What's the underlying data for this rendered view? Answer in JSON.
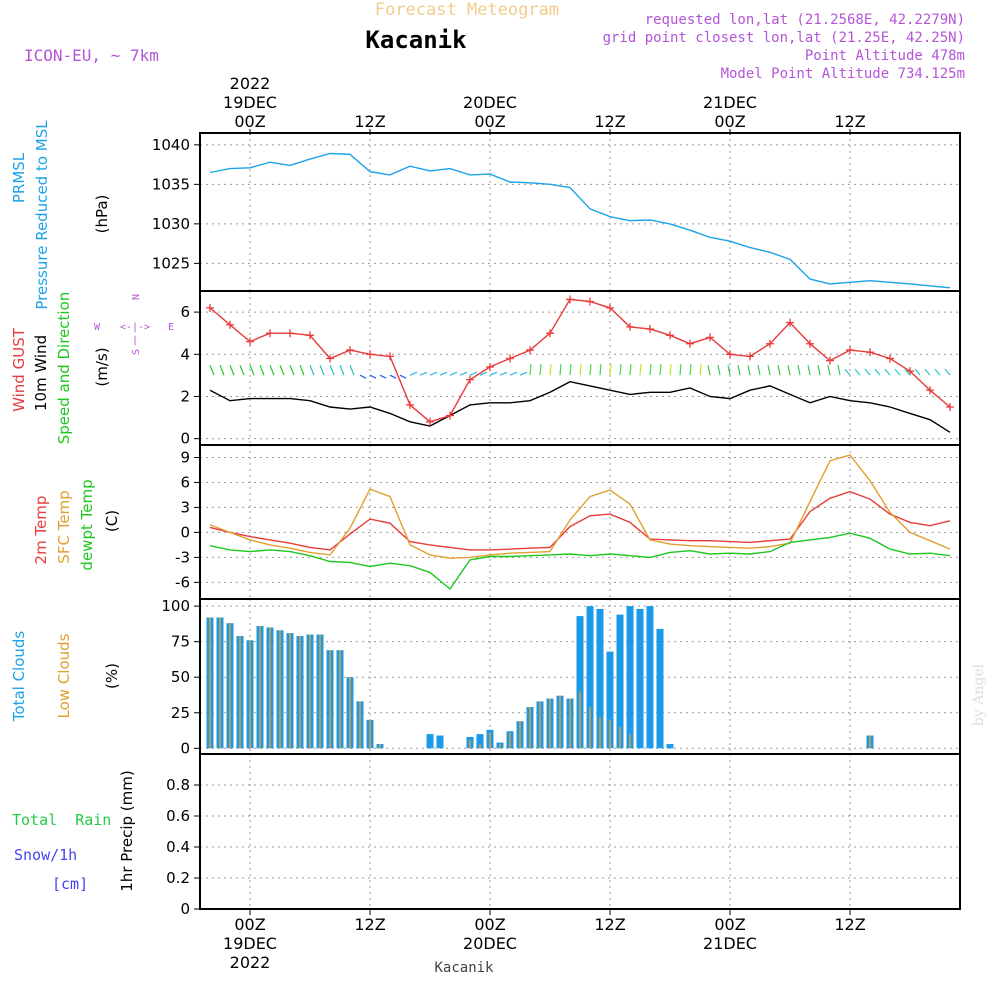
{
  "header": {
    "super_title": "Forecast Meteogram",
    "location": "Kacanik",
    "model": "ICON-EU, ~ 7km",
    "requested": "requested lon,lat (21.2568E, 42.2279N)",
    "grid_point": "grid point closest lon,lat (21.25E, 42.25N)",
    "point_alt": "Point Altitude 478m",
    "model_alt": "Model Point Altitude 734.125m"
  },
  "time_axis": {
    "top_labels": [
      {
        "t": 0,
        "lines": [
          "2022",
          "19DEC",
          "00Z"
        ]
      },
      {
        "t": 12,
        "lines": [
          "12Z"
        ]
      },
      {
        "t": 24,
        "lines": [
          "20DEC",
          "00Z"
        ]
      },
      {
        "t": 36,
        "lines": [
          "12Z"
        ]
      },
      {
        "t": 48,
        "lines": [
          "21DEC",
          "00Z"
        ]
      },
      {
        "t": 60,
        "lines": [
          "12Z"
        ]
      }
    ],
    "bottom_labels": [
      {
        "t": 0,
        "lines": [
          "00Z",
          "19DEC",
          "2022"
        ]
      },
      {
        "t": 12,
        "lines": [
          "12Z"
        ]
      },
      {
        "t": 24,
        "lines": [
          "00Z",
          "20DEC"
        ]
      },
      {
        "t": 36,
        "lines": [
          "12Z"
        ]
      },
      {
        "t": 48,
        "lines": [
          "00Z",
          "21DEC"
        ]
      },
      {
        "t": 60,
        "lines": [
          "12Z"
        ]
      }
    ],
    "xlim": [
      -5,
      71
    ],
    "footer_label": "Kacanik"
  },
  "watermark": "by Angel",
  "panel_labels": {
    "pressure": [
      "PRMSL",
      "Pressure Reduced to MSL"
    ],
    "pressure_unit": "(hPa)",
    "wind_gust": "Wind GUST",
    "wind_10m": "10m Wind",
    "wind_dir": "Speed and Direction",
    "wind_unit": "(m/s)",
    "compass": {
      "n": "N",
      "s": "S",
      "w": "W",
      "e": "E",
      "ns": "|",
      "we": "<-|->"
    },
    "t2m": "2m Temp",
    "tsfc": "SFC Temp",
    "tdew": "dewpt Temp",
    "temp_unit": "(C)",
    "total_clouds": "Total Clouds",
    "low_clouds": "Low Clouds",
    "cloud_unit": "(%)",
    "total_rain": "Total  Rain",
    "snow": "Snow/1h",
    "snow_unit": "[cm]",
    "precip": "1hr Precip (mm)"
  },
  "colors": {
    "pressure": "#1aa3e8",
    "gust": "#e83b3b",
    "wind10": "#000000",
    "t2m": "#e83b3b",
    "tsfc": "#e0a030",
    "tdew": "#1ec81e",
    "total_clouds": "#1a9ae8",
    "low_clouds": "#e0a030",
    "label_purple": "#b455d8",
    "title_orange": "#f2cc8c",
    "rain_green": "#22cc44",
    "snow_blue": "#4444ee"
  },
  "chart_data": [
    {
      "type": "line",
      "title": "PRMSL Pressure Reduced to MSL",
      "ylabel": "(hPa)",
      "ylim": [
        1021.5,
        1041.5
      ],
      "yticks": [
        "1025",
        "1030",
        "1035",
        "1040"
      ],
      "yticks_values": [
        1025,
        1030,
        1035,
        1040
      ],
      "series": [
        {
          "name": "PRMSL",
          "x": [
            -4,
            -2,
            0,
            2,
            4,
            6,
            8,
            10,
            12,
            14,
            16,
            18,
            20,
            22,
            24,
            26,
            28,
            30,
            32,
            34,
            36,
            38,
            40,
            42,
            44,
            46,
            48,
            50,
            52,
            54,
            56,
            58,
            60,
            62,
            64,
            66,
            70
          ],
          "y": [
            1036.5,
            1037,
            1037.1,
            1037.8,
            1037.4,
            1038.2,
            1038.9,
            1038.8,
            1036.6,
            1036.2,
            1037.3,
            1036.7,
            1037,
            1036.2,
            1036.3,
            1035.3,
            1035.2,
            1035,
            1034.6,
            1031.9,
            1030.9,
            1030.4,
            1030.5,
            1030,
            1029.2,
            1028.3,
            1027.8,
            1027,
            1026.4,
            1025.5,
            1023,
            1022.4,
            1022.6,
            1022.8,
            1022.6,
            1022.4,
            1021.9
          ]
        }
      ],
      "grid": true
    },
    {
      "type": "line",
      "title": "Wind GUST / 10m Wind Speed and Direction",
      "ylabel": "(m/s)",
      "ylim": [
        -0.3,
        7
      ],
      "yticks": [
        "0",
        "2",
        "4",
        "6"
      ],
      "yticks_values": [
        0,
        2,
        4,
        6
      ],
      "series": [
        {
          "name": "Wind GUST",
          "x": [
            -4,
            -2,
            0,
            2,
            4,
            6,
            8,
            10,
            12,
            14,
            16,
            18,
            20,
            22,
            24,
            26,
            28,
            30,
            32,
            34,
            36,
            38,
            40,
            42,
            44,
            46,
            48,
            50,
            52,
            54,
            56,
            58,
            60,
            62,
            64,
            66,
            68,
            70
          ],
          "y": [
            6.2,
            5.4,
            4.6,
            5,
            5,
            4.9,
            3.8,
            4.2,
            4,
            3.9,
            1.6,
            0.8,
            1.1,
            2.8,
            3.4,
            3.8,
            4.2,
            5,
            6.6,
            6.5,
            6.2,
            5.3,
            5.2,
            4.9,
            4.5,
            4.8,
            4,
            3.9,
            4.5,
            5.5,
            4.5,
            3.7,
            4.2,
            4.1,
            3.8,
            3.2,
            2.3,
            1.5
          ]
        },
        {
          "name": "10m Wind",
          "x": [
            -4,
            -2,
            0,
            2,
            4,
            6,
            8,
            10,
            12,
            14,
            16,
            18,
            20,
            22,
            24,
            26,
            28,
            30,
            32,
            34,
            36,
            38,
            40,
            42,
            44,
            46,
            48,
            50,
            52,
            54,
            56,
            58,
            60,
            62,
            64,
            66,
            68,
            70
          ],
          "y": [
            2.3,
            1.8,
            1.9,
            1.9,
            1.9,
            1.8,
            1.5,
            1.4,
            1.5,
            1.2,
            0.8,
            0.6,
            1.1,
            1.6,
            1.7,
            1.7,
            1.8,
            2.2,
            2.7,
            2.5,
            2.3,
            2.1,
            2.2,
            2.2,
            2.4,
            2,
            1.9,
            2.3,
            2.5,
            2.1,
            1.7,
            2,
            1.8,
            1.7,
            1.5,
            1.2,
            0.9,
            0.3
          ]
        }
      ],
      "arrow_level": 3.2,
      "grid": true
    },
    {
      "type": "line",
      "title": "2m Temp / SFC Temp / dewpt Temp",
      "ylabel": "(C)",
      "ylim": [
        -8,
        10.5
      ],
      "yticks": [
        "-6",
        "-3",
        "0",
        "3",
        "6",
        "9"
      ],
      "yticks_values": [
        -6,
        -3,
        0,
        3,
        6,
        9
      ],
      "series": [
        {
          "name": "2m Temp",
          "x": [
            -4,
            -2,
            0,
            2,
            4,
            6,
            8,
            10,
            12,
            14,
            16,
            18,
            20,
            22,
            24,
            26,
            28,
            30,
            32,
            34,
            36,
            38,
            40,
            42,
            44,
            46,
            48,
            50,
            52,
            54,
            56,
            58,
            60,
            62,
            64,
            66,
            68,
            70
          ],
          "y": [
            0.6,
            0,
            -0.5,
            -0.9,
            -1.3,
            -1.8,
            -2.1,
            -0.2,
            1.6,
            1.1,
            -1.1,
            -1.5,
            -1.8,
            -2.1,
            -2.1,
            -2,
            -1.9,
            -1.8,
            0.7,
            2,
            2.2,
            1.2,
            -0.8,
            -0.9,
            -1,
            -1,
            -1.1,
            -1.2,
            -1,
            -0.8,
            2.5,
            4.1,
            4.9,
            4,
            2.2,
            1.2,
            0.8,
            1.4
          ]
        },
        {
          "name": "SFC Temp",
          "x": [
            -4,
            -2,
            0,
            2,
            4,
            6,
            8,
            10,
            12,
            14,
            16,
            18,
            20,
            22,
            24,
            26,
            28,
            30,
            32,
            34,
            36,
            38,
            40,
            42,
            44,
            46,
            48,
            50,
            52,
            54,
            56,
            58,
            60,
            62,
            64,
            66,
            68,
            70
          ],
          "y": [
            0.9,
            0,
            -0.9,
            -1.5,
            -1.9,
            -2.4,
            -2.7,
            0.5,
            5.2,
            4.3,
            -1.5,
            -2.7,
            -3.1,
            -3,
            -2.7,
            -2.5,
            -2.4,
            -2.3,
            1.5,
            4.3,
            5.1,
            3.4,
            -0.9,
            -1.4,
            -1.6,
            -1.7,
            -1.8,
            -1.9,
            -1.7,
            -1.3,
            3.7,
            8.6,
            9.3,
            6.2,
            2.4,
            0,
            -1,
            -2
          ]
        },
        {
          "name": "dewpt Temp",
          "x": [
            -4,
            -2,
            0,
            2,
            4,
            6,
            8,
            10,
            12,
            14,
            16,
            18,
            20,
            22,
            24,
            26,
            28,
            30,
            32,
            34,
            36,
            38,
            40,
            42,
            44,
            46,
            48,
            50,
            52,
            54,
            56,
            58,
            60,
            62,
            64,
            66,
            68,
            70
          ],
          "y": [
            -1.6,
            -2.1,
            -2.3,
            -2.1,
            -2.3,
            -2.8,
            -3.5,
            -3.6,
            -4.1,
            -3.7,
            -4,
            -4.8,
            -6.8,
            -3.3,
            -2.9,
            -2.9,
            -2.8,
            -2.7,
            -2.6,
            -2.8,
            -2.6,
            -2.8,
            -3,
            -2.4,
            -2.2,
            -2.6,
            -2.5,
            -2.6,
            -2.3,
            -1.2,
            -0.9,
            -0.6,
            -0.1,
            -0.7,
            -2,
            -2.6,
            -2.5,
            -2.8
          ]
        }
      ],
      "grid": true
    },
    {
      "type": "bar",
      "title": "Total Clouds / Low Clouds",
      "ylabel": "(%)",
      "ylim": [
        -4,
        105
      ],
      "yticks": [
        "0",
        "25",
        "50",
        "75",
        "100"
      ],
      "yticks_values": [
        0,
        25,
        50,
        75,
        100
      ],
      "x": [
        -4,
        -3,
        -2,
        -1,
        0,
        1,
        2,
        3,
        4,
        5,
        6,
        7,
        8,
        9,
        10,
        11,
        12,
        13,
        14,
        15,
        16,
        17,
        18,
        19,
        20,
        21,
        22,
        23,
        24,
        25,
        26,
        27,
        28,
        29,
        30,
        31,
        32,
        33,
        34,
        35,
        36,
        37,
        38,
        39,
        40,
        41,
        42,
        43,
        44,
        45,
        46,
        47,
        48,
        49,
        50,
        51,
        52,
        53,
        54,
        55,
        56,
        57,
        58,
        59,
        60,
        61,
        62,
        63,
        64,
        65,
        66,
        67,
        68,
        69,
        70
      ],
      "series": [
        {
          "name": "Total Clouds",
          "values": [
            92,
            92,
            88,
            79,
            76,
            86,
            85,
            83,
            81,
            79,
            80,
            80,
            69,
            69,
            50,
            33,
            20,
            3,
            0,
            0,
            0,
            0,
            10,
            9,
            0,
            0,
            8,
            10,
            13,
            4,
            12,
            19,
            29,
            33,
            35,
            37,
            35,
            93,
            100,
            98,
            68,
            94,
            100,
            98,
            100,
            84,
            3,
            0,
            0,
            0,
            0,
            0,
            0,
            0,
            0,
            0,
            0,
            0,
            0,
            0,
            0,
            0,
            0,
            0,
            0,
            0,
            9,
            0,
            0,
            0,
            0,
            0,
            0,
            0,
            0
          ]
        },
        {
          "name": "Low Clouds",
          "values": [
            92,
            92,
            88,
            79,
            76,
            86,
            85,
            83,
            81,
            79,
            80,
            80,
            69,
            69,
            50,
            33,
            20,
            3,
            0,
            0,
            0,
            0,
            0,
            0,
            0,
            0,
            6,
            3,
            11,
            3,
            11,
            19,
            29,
            33,
            35,
            37,
            35,
            40,
            29,
            22,
            20,
            15,
            10,
            0,
            0,
            0,
            0,
            0,
            0,
            0,
            0,
            0,
            0,
            0,
            0,
            0,
            0,
            0,
            0,
            0,
            0,
            0,
            0,
            0,
            0,
            0,
            9,
            0,
            0,
            0,
            0,
            0,
            0,
            0,
            0
          ]
        }
      ],
      "grid": true
    },
    {
      "type": "line",
      "title": "1hr Precip",
      "ylabel": "1hr Precip (mm)",
      "ylim": [
        0,
        1
      ],
      "yticks": [
        "0",
        "0.2",
        "0.4",
        "0.6",
        "0.8"
      ],
      "yticks_values": [
        0,
        0.2,
        0.4,
        0.6,
        0.8
      ],
      "series": [],
      "grid": true
    }
  ]
}
